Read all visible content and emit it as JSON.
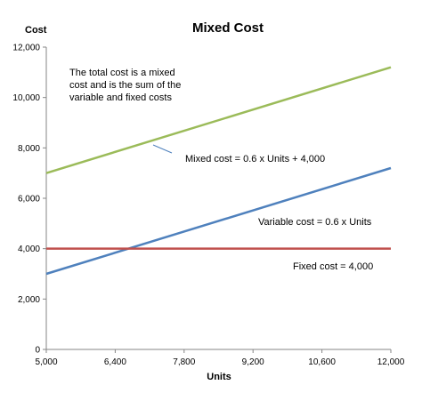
{
  "chart_data": {
    "type": "line",
    "title": "Mixed Cost",
    "xlabel": "Units",
    "ylabel": "Cost",
    "xlim": [
      5000,
      12000
    ],
    "ylim": [
      0,
      12000
    ],
    "x_ticks": [
      "5,000",
      "6,400",
      "7,800",
      "9,200",
      "10,600",
      "12,000"
    ],
    "y_ticks": [
      "0",
      "2,000",
      "4,000",
      "6,000",
      "8,000",
      "10,000",
      "12,000"
    ],
    "grid": false,
    "legend": "none",
    "series": [
      {
        "name": "Mixed cost = 0.6 x Units + 4,000",
        "x": [
          5000,
          12000
        ],
        "values": [
          7000,
          11200
        ],
        "color": "#9bbb59"
      },
      {
        "name": "Variable cost = 0.6 x Units",
        "x": [
          5000,
          12000
        ],
        "values": [
          3000,
          7200
        ],
        "color": "#4f81bd"
      },
      {
        "name": "Fixed cost = 4,000",
        "x": [
          5000,
          12000
        ],
        "values": [
          4000,
          4000
        ],
        "color": "#c0504d"
      }
    ],
    "annotations": [
      {
        "text": "The total cost is a mixed cost and is the sum of the variable and fixed costs"
      }
    ]
  }
}
